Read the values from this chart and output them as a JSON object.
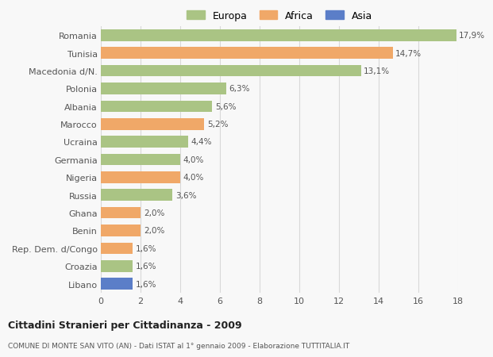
{
  "categories": [
    "Romania",
    "Tunisia",
    "Macedonia d/N.",
    "Polonia",
    "Albania",
    "Marocco",
    "Ucraina",
    "Germania",
    "Nigeria",
    "Russia",
    "Ghana",
    "Benin",
    "Rep. Dem. d/Congo",
    "Croazia",
    "Libano"
  ],
  "values": [
    17.9,
    14.7,
    13.1,
    6.3,
    5.6,
    5.2,
    4.4,
    4.0,
    4.0,
    3.6,
    2.0,
    2.0,
    1.6,
    1.6,
    1.6
  ],
  "labels": [
    "17,9%",
    "14,7%",
    "13,1%",
    "6,3%",
    "5,6%",
    "5,2%",
    "4,4%",
    "4,0%",
    "4,0%",
    "3,6%",
    "2,0%",
    "2,0%",
    "1,6%",
    "1,6%",
    "1,6%"
  ],
  "continent": [
    "Europa",
    "Africa",
    "Europa",
    "Europa",
    "Europa",
    "Africa",
    "Europa",
    "Europa",
    "Africa",
    "Europa",
    "Africa",
    "Africa",
    "Africa",
    "Europa",
    "Asia"
  ],
  "colors": {
    "Europa": "#aac484",
    "Africa": "#f0a868",
    "Asia": "#5b7ec8"
  },
  "xlim": [
    0,
    18
  ],
  "xticks": [
    0,
    2,
    4,
    6,
    8,
    10,
    12,
    14,
    16,
    18
  ],
  "title": "Cittadini Stranieri per Cittadinanza - 2009",
  "subtitle": "COMUNE DI MONTE SAN VITO (AN) - Dati ISTAT al 1° gennaio 2009 - Elaborazione TUTTITALIA.IT",
  "background_color": "#f8f8f8",
  "grid_color": "#d8d8d8",
  "bar_height": 0.65
}
